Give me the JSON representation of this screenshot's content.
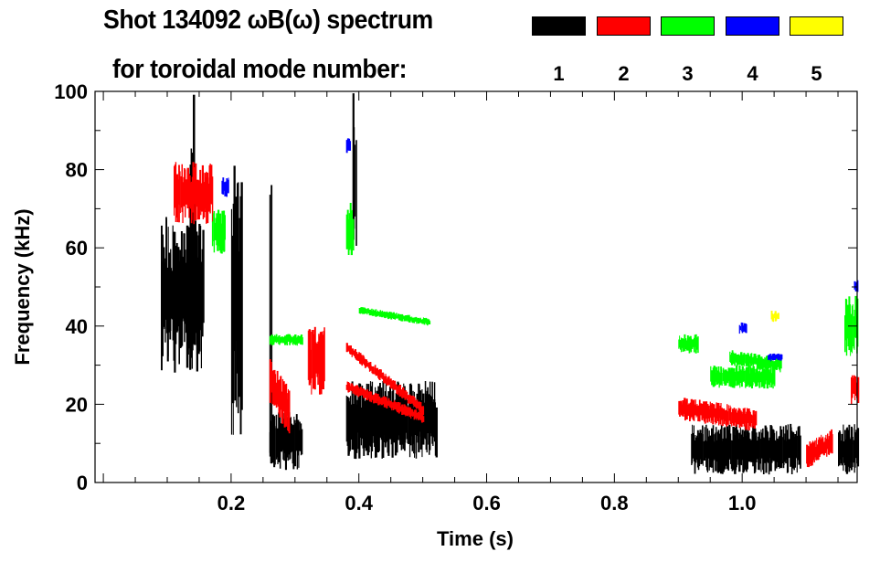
{
  "chart_data": {
    "type": "heatmap",
    "title": "Shot 134092 ωB(ω) spectrum",
    "subtitle": "for toroidal mode number:",
    "xlabel": "Time (s)",
    "ylabel": "Frequency (kHz)",
    "xlim": [
      -0.013,
      1.18
    ],
    "ylim": [
      0,
      100
    ],
    "xticks": [
      0.2,
      0.4,
      0.6,
      0.8,
      1.0
    ],
    "xtick_labels": [
      "0.2",
      "0.4",
      "0.6",
      "0.8",
      "1.0"
    ],
    "yticks": [
      0,
      20,
      40,
      60,
      80,
      100
    ],
    "ytick_labels": [
      "0",
      "20",
      "40",
      "60",
      "80",
      "100"
    ],
    "legend_placement": "top-right",
    "legend": [
      {
        "mode": "1",
        "color": "#000000"
      },
      {
        "mode": "2",
        "color": "#ff0000"
      },
      {
        "mode": "3",
        "color": "#00ff00"
      },
      {
        "mode": "4",
        "color": "#0000ff"
      },
      {
        "mode": "5",
        "color": "#ffff00"
      }
    ],
    "series": [
      {
        "mode": "1",
        "regions": [
          [
            0.09,
            0.155,
            28,
            68,
            0
          ],
          [
            0.135,
            0.14,
            40,
            100,
            0
          ],
          [
            0.2,
            0.215,
            10,
            85,
            0
          ],
          [
            0.26,
            0.262,
            0,
            100,
            0
          ],
          [
            0.26,
            0.31,
            3,
            18,
            0
          ],
          [
            0.38,
            0.52,
            6,
            26,
            0
          ],
          [
            0.39,
            0.395,
            60,
            100,
            0
          ],
          [
            0.92,
            1.09,
            2,
            15,
            0
          ],
          [
            1.15,
            1.18,
            2,
            15,
            0
          ]
        ]
      },
      {
        "mode": "2",
        "regions": [
          [
            0.11,
            0.17,
            66,
            82,
            0
          ],
          [
            0.26,
            0.29,
            20,
            32,
            -8
          ],
          [
            0.32,
            0.345,
            22,
            40,
            0
          ],
          [
            0.38,
            0.5,
            33,
            36,
            -16
          ],
          [
            0.38,
            0.5,
            23,
            26,
            -8
          ],
          [
            0.9,
            1.02,
            16,
            22,
            -3
          ],
          [
            1.1,
            1.14,
            3,
            10,
            4
          ],
          [
            1.17,
            1.18,
            20,
            28,
            0
          ]
        ]
      },
      {
        "mode": "3",
        "regions": [
          [
            0.17,
            0.19,
            58,
            70,
            0
          ],
          [
            0.38,
            0.39,
            58,
            72,
            0
          ],
          [
            0.4,
            0.51,
            43,
            45,
            -3
          ],
          [
            0.26,
            0.31,
            35,
            38,
            0
          ],
          [
            0.9,
            0.93,
            33,
            38,
            0
          ],
          [
            0.95,
            1.05,
            24,
            30,
            0
          ],
          [
            0.98,
            1.06,
            30,
            34,
            -2
          ],
          [
            1.16,
            1.18,
            32,
            48,
            0
          ]
        ]
      },
      {
        "mode": "4",
        "regions": [
          [
            0.185,
            0.195,
            73,
            78,
            0
          ],
          [
            0.38,
            0.385,
            84,
            88,
            0
          ],
          [
            0.995,
            1.005,
            38,
            41,
            0
          ],
          [
            1.04,
            1.06,
            31,
            33,
            0
          ],
          [
            1.175,
            1.18,
            48,
            52,
            0
          ]
        ]
      },
      {
        "mode": "5",
        "regions": [
          [
            1.045,
            1.055,
            41,
            44,
            0
          ]
        ]
      }
    ]
  }
}
